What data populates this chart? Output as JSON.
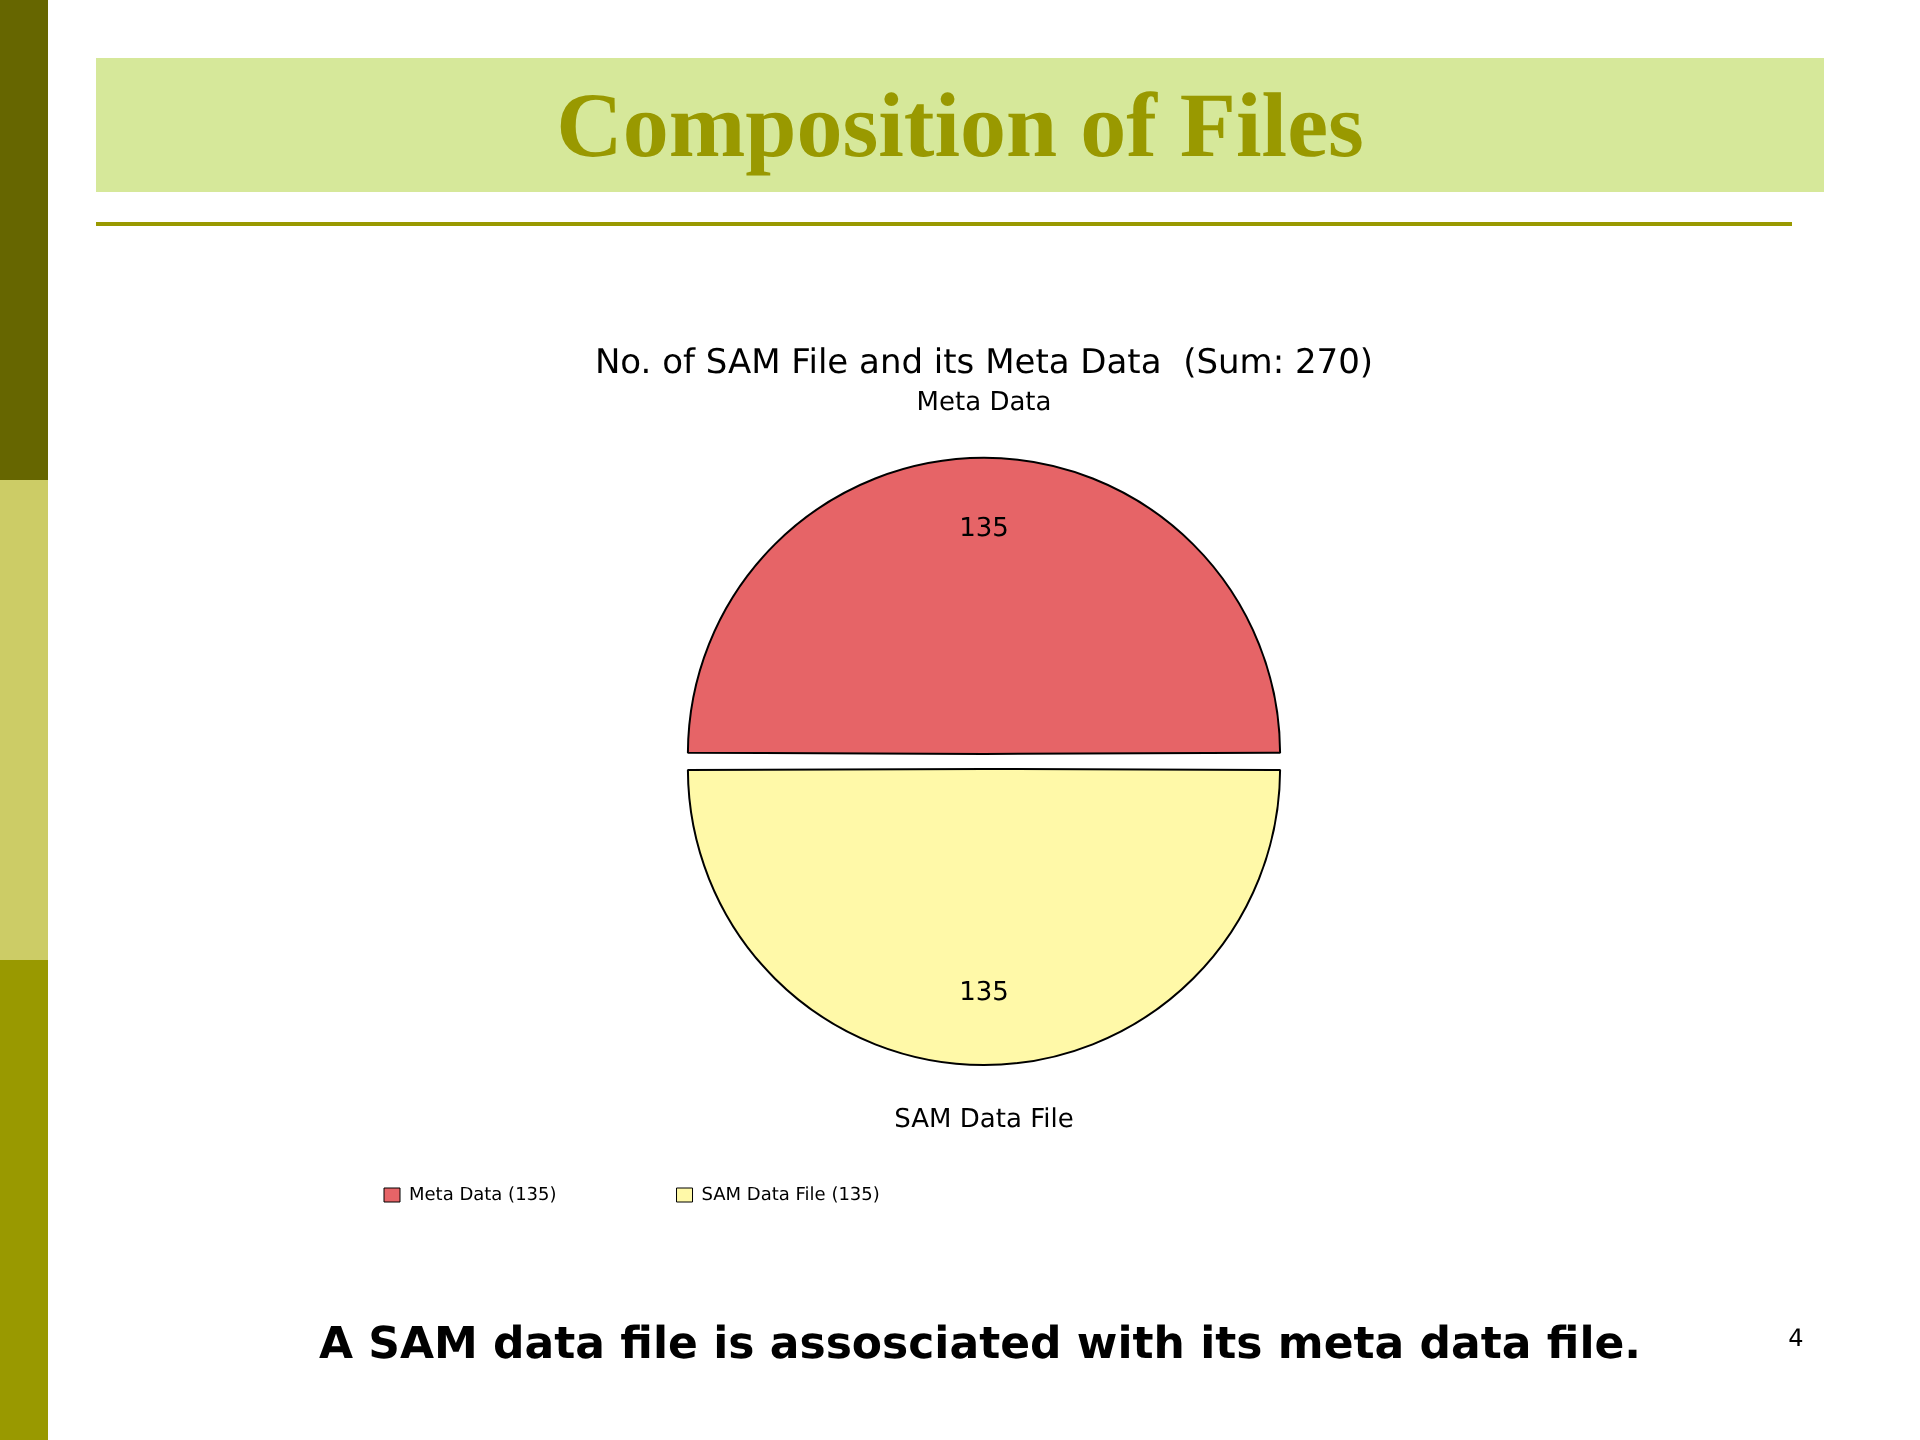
{
  "chart_data": {
    "type": "pie",
    "title": "Composition of Files",
    "subtitle": "No. of SAM File and its Meta Data  (Sum: 270)",
    "categories": [
      "Meta Data (135)",
      "SAM Data File (135)"
    ],
    "values": [
      135,
      135
    ],
    "colors": [
      "#e66467",
      "#fff9a8"
    ],
    "data_labels": true,
    "legend": "bottom left",
    "annotations": [
      "Meta Data",
      "SAM Data File",
      "A SAM data file is assosciated with its meta data file.",
      "4"
    ]
  }
}
